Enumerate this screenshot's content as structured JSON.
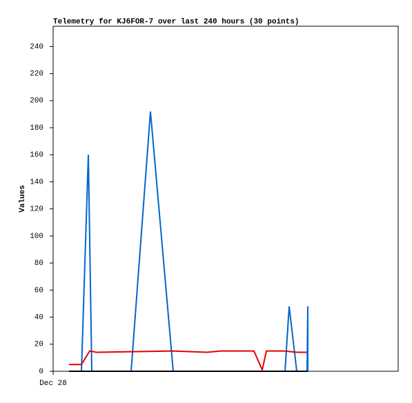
{
  "chart_data": {
    "type": "line",
    "title": "Telemetry for KJ6FOR-7 over last 240 hours (30 points)",
    "y_label": "Values",
    "xlim": [
      0,
      250
    ],
    "xticks": [
      {
        "value": 0,
        "label": "Dec 28"
      }
    ],
    "ylim": [
      0,
      255
    ],
    "yticks": [
      0,
      20,
      40,
      60,
      80,
      100,
      120,
      140,
      160,
      180,
      200,
      220,
      240
    ],
    "grid": false,
    "series": [
      {
        "color": "#0066cc",
        "x": [
          11.5,
          20.5,
          25.5,
          28,
          56.5,
          70.5,
          87,
          168,
          171,
          176.5,
          184,
          184.5,
          184.5
        ],
        "values": [
          0,
          0,
          160,
          0,
          0,
          192,
          0,
          0,
          48,
          0,
          0,
          48,
          0
        ]
      },
      {
        "color": "#000000",
        "x": [
          11.5,
          184.5
        ],
        "values": [
          0,
          0
        ]
      },
      {
        "color": "#e00000",
        "x": [
          11.5,
          20.5,
          26.5,
          31.5,
          86.5,
          111.5,
          121.5,
          145.5,
          151.5,
          154.5,
          167.5,
          176.5,
          184
        ],
        "values": [
          5,
          5,
          15,
          14,
          15,
          14,
          15,
          15,
          1,
          15,
          15,
          14,
          14
        ]
      }
    ]
  }
}
